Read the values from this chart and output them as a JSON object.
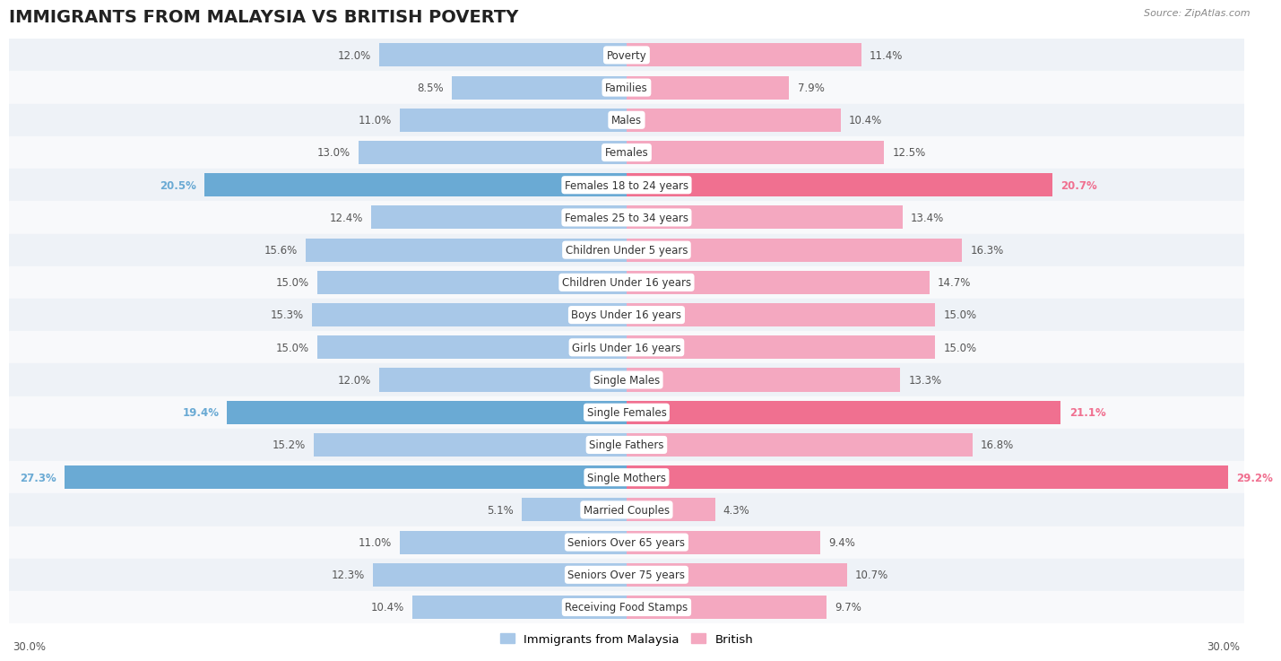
{
  "title": "IMMIGRANTS FROM MALAYSIA VS BRITISH POVERTY",
  "source": "Source: ZipAtlas.com",
  "categories": [
    "Poverty",
    "Families",
    "Males",
    "Females",
    "Females 18 to 24 years",
    "Females 25 to 34 years",
    "Children Under 5 years",
    "Children Under 16 years",
    "Boys Under 16 years",
    "Girls Under 16 years",
    "Single Males",
    "Single Females",
    "Single Fathers",
    "Single Mothers",
    "Married Couples",
    "Seniors Over 65 years",
    "Seniors Over 75 years",
    "Receiving Food Stamps"
  ],
  "malaysia_values": [
    12.0,
    8.5,
    11.0,
    13.0,
    20.5,
    12.4,
    15.6,
    15.0,
    15.3,
    15.0,
    12.0,
    19.4,
    15.2,
    27.3,
    5.1,
    11.0,
    12.3,
    10.4
  ],
  "british_values": [
    11.4,
    7.9,
    10.4,
    12.5,
    20.7,
    13.4,
    16.3,
    14.7,
    15.0,
    15.0,
    13.3,
    21.1,
    16.8,
    29.2,
    4.3,
    9.4,
    10.7,
    9.7
  ],
  "malaysia_color": "#a8c8e8",
  "british_color": "#f4a8c0",
  "malaysia_highlight_color": "#6aaad4",
  "british_highlight_color": "#f07090",
  "highlight_rows": [
    4,
    11,
    13
  ],
  "bar_height": 0.72,
  "xlim": 30.0,
  "background_color": "#ffffff",
  "row_even_color": "#eef2f7",
  "row_odd_color": "#f8f9fb",
  "title_fontsize": 14,
  "cat_fontsize": 8.5,
  "value_fontsize": 8.5,
  "legend_fontsize": 9.5
}
